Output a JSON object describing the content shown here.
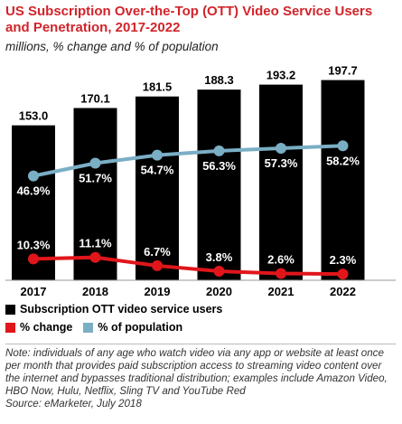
{
  "title": "US Subscription Over-the-Top (OTT) Video Service Users and Penetration, 2017-2022",
  "subtitle": "millions, % change and % of population",
  "chart_data": {
    "type": "bar",
    "categories": [
      "2017",
      "2018",
      "2019",
      "2020",
      "2021",
      "2022"
    ],
    "series": [
      {
        "name": "Subscription OTT video service users",
        "type": "bar",
        "color": "#000000",
        "values": [
          153.0,
          170.1,
          181.5,
          188.3,
          193.2,
          197.7
        ],
        "labels": [
          "153.0",
          "170.1",
          "181.5",
          "188.3",
          "193.2",
          "197.7"
        ]
      },
      {
        "name": "% change",
        "type": "line",
        "color": "#e0161b",
        "values": [
          10.3,
          11.1,
          6.7,
          3.8,
          2.6,
          2.3
        ],
        "labels": [
          "10.3%",
          "11.1%",
          "6.7%",
          "3.8%",
          "2.6%",
          "2.3%"
        ]
      },
      {
        "name": "% of population",
        "type": "line",
        "color": "#7aaec5",
        "values": [
          46.9,
          51.7,
          54.7,
          56.3,
          57.3,
          58.2
        ],
        "labels": [
          "46.9%",
          "51.7%",
          "54.7%",
          "56.3%",
          "57.3%",
          "58.2%"
        ]
      }
    ],
    "ylim": [
      0,
      200
    ],
    "grid": false,
    "legend_position": "bottom"
  },
  "legend": {
    "bars": "Subscription OTT video service users",
    "change": "% change",
    "population": "% of population"
  },
  "note": "Note: individuals of any age who watch video via any app or website at least once per month that provides paid subscription access to streaming video content over the internet and bypasses traditional distribution; examples include Amazon Video, HBO Now, Hulu, Netflix, Sling TV and YouTube Red",
  "source": "Source: eMarketer, July 2018"
}
